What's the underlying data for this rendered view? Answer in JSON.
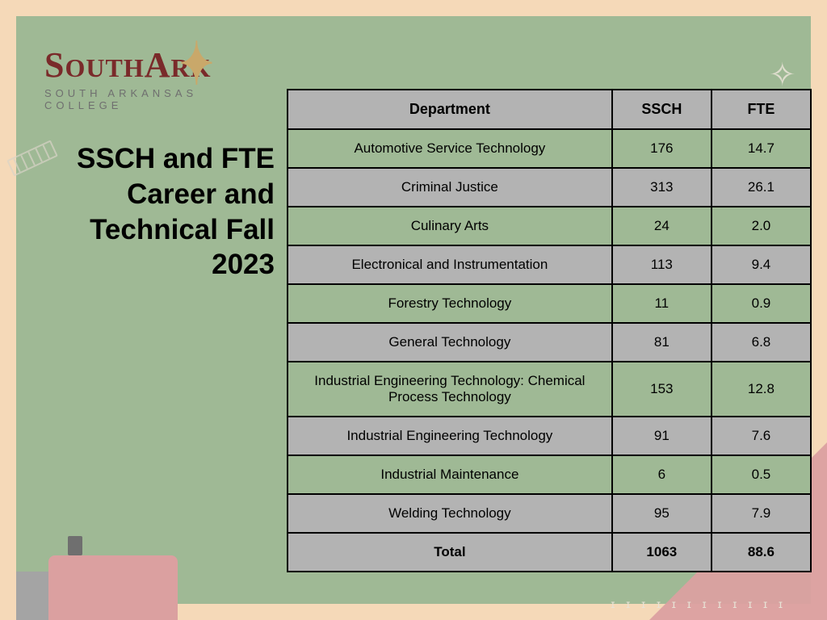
{
  "logo": {
    "line1_left": "S",
    "line1_small1": "OUTH",
    "line1_right": "A",
    "line1_small2": "RK",
    "line2": "SOUTH ARKANSAS COLLEGE"
  },
  "title": "SSCH and FTE Career and Technical Fall 2023",
  "table": {
    "columns": [
      "Department",
      "SSCH",
      "FTE"
    ],
    "rows": [
      {
        "dept": "Automotive Service Technology",
        "ssch": "176",
        "fte": "14.7"
      },
      {
        "dept": "Criminal Justice",
        "ssch": "313",
        "fte": "26.1"
      },
      {
        "dept": "Culinary Arts",
        "ssch": "24",
        "fte": "2.0"
      },
      {
        "dept": "Electronical and Instrumentation",
        "ssch": "113",
        "fte": "9.4"
      },
      {
        "dept": "Forestry Technology",
        "ssch": "11",
        "fte": "0.9"
      },
      {
        "dept": "General Technology",
        "ssch": "81",
        "fte": "6.8"
      },
      {
        "dept": "Industrial Engineering Technology: Chemical Process Technology",
        "ssch": "153",
        "fte": "12.8"
      },
      {
        "dept": "Industrial Engineering Technology",
        "ssch": "91",
        "fte": "7.6"
      },
      {
        "dept": "Industrial Maintenance",
        "ssch": "6",
        "fte": "0.5"
      },
      {
        "dept": "Welding Technology",
        "ssch": "95",
        "fte": "7.9"
      }
    ],
    "total": {
      "label": "Total",
      "ssch": "1063",
      "fte": "88.6"
    },
    "header_bg": "#b3b3b3",
    "row_even_bg": "#9fb995",
    "row_odd_bg": "#b3b3b3",
    "border_color": "#000000"
  },
  "colors": {
    "page_bg": "#f5d9b8",
    "inner_bg": "#9fb995",
    "logo_text": "#7a2a2a",
    "logo_accent": "#c9a86a",
    "logo_sub": "#6f6f6f",
    "pink": "#dba0a0",
    "gray": "#a4a4a4",
    "doodle": "#d9d4c7"
  }
}
